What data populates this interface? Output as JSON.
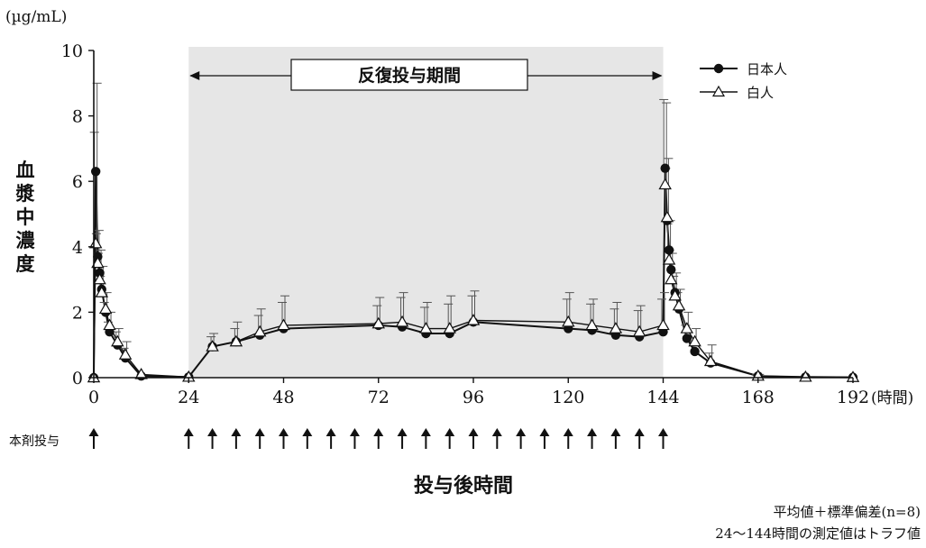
{
  "chart_data": {
    "type": "line",
    "title": "",
    "y_unit": "(µg/mL)",
    "ylabel": "血漿中濃度",
    "xlabel": "投与後時間",
    "x_unit": "(時間)",
    "xlim": [
      0,
      192
    ],
    "ylim": [
      0,
      10
    ],
    "x_ticks": [
      0,
      24,
      48,
      72,
      96,
      120,
      144,
      168,
      192
    ],
    "y_ticks": [
      0,
      2,
      4,
      6,
      8,
      10
    ],
    "shaded_region": {
      "x_range": [
        24,
        144
      ],
      "label": "反復投与期間"
    },
    "dosing_label": "本剤投与",
    "dosing_times": [
      0,
      24,
      30,
      36,
      42,
      48,
      54,
      60,
      66,
      72,
      78,
      84,
      90,
      96,
      102,
      108,
      114,
      120,
      126,
      132,
      138,
      144
    ],
    "legend_position": "top-right",
    "series": [
      {
        "name": "日本人",
        "marker": "filled-circle",
        "x": [
          0,
          0.5,
          1,
          1.5,
          2,
          3,
          4,
          6,
          8,
          12,
          24,
          30,
          36,
          42,
          48,
          72,
          78,
          84,
          90,
          96,
          120,
          126,
          132,
          138,
          144,
          144.5,
          145,
          145.5,
          146,
          147,
          148,
          150,
          152,
          156,
          168,
          180,
          192
        ],
        "y": [
          0,
          6.3,
          3.7,
          3.2,
          2.7,
          2.0,
          1.4,
          1.0,
          0.6,
          0.05,
          0.02,
          0.95,
          1.1,
          1.3,
          1.5,
          1.6,
          1.55,
          1.35,
          1.35,
          1.7,
          1.5,
          1.45,
          1.3,
          1.25,
          1.4,
          6.4,
          4.8,
          3.9,
          3.3,
          2.6,
          2.1,
          1.2,
          0.8,
          0.45,
          0.05,
          0.02,
          0.01
        ],
        "sd": [
          0,
          1.2,
          0.7,
          0.6,
          0.4,
          0.3,
          0.3,
          0.4,
          0.3,
          0,
          0,
          0.3,
          0.4,
          0.6,
          0.8,
          0.6,
          0.9,
          0.8,
          0.9,
          0.8,
          0.9,
          0.8,
          0.8,
          0.8,
          1.0,
          2.1,
          1.6,
          0.8,
          0.6,
          0.5,
          0.5,
          0.4,
          0.3,
          0.3,
          0.05,
          0,
          0
        ]
      },
      {
        "name": "白人",
        "marker": "open-triangle",
        "x": [
          0,
          0.5,
          1,
          1.5,
          2,
          3,
          4,
          6,
          8,
          12,
          24,
          30,
          36,
          42,
          48,
          72,
          78,
          84,
          90,
          96,
          120,
          126,
          132,
          138,
          144,
          144.5,
          145,
          145.5,
          146,
          147,
          148,
          150,
          152,
          156,
          168,
          180,
          192
        ],
        "y": [
          0,
          4.1,
          3.5,
          3.0,
          2.6,
          2.1,
          1.6,
          1.1,
          0.7,
          0.1,
          0.02,
          0.95,
          1.1,
          1.4,
          1.6,
          1.65,
          1.7,
          1.5,
          1.5,
          1.75,
          1.7,
          1.6,
          1.5,
          1.4,
          1.6,
          5.9,
          4.9,
          3.6,
          3.0,
          2.5,
          2.2,
          1.5,
          1.1,
          0.5,
          0.05,
          0.02,
          0.01
        ],
        "sd": [
          0,
          4.9,
          1.0,
          0.9,
          0.8,
          0.5,
          0.4,
          0.4,
          0.4,
          0,
          0,
          0.4,
          0.6,
          0.7,
          0.9,
          0.8,
          0.9,
          0.8,
          1.0,
          0.9,
          0.9,
          0.8,
          0.8,
          0.8,
          1.0,
          2.5,
          1.8,
          1.2,
          0.8,
          0.7,
          0.5,
          0.5,
          0.4,
          0.5,
          0.05,
          0,
          0
        ]
      }
    ]
  },
  "footnotes": {
    "line1": "平均値＋標準偏差(n=8)",
    "line2": "24～144時間の測定値はトラフ値"
  }
}
